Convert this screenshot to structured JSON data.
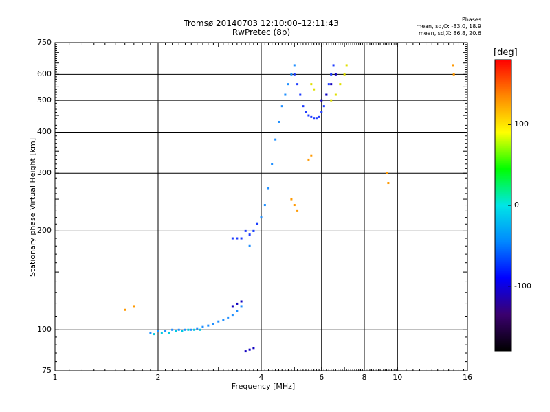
{
  "header": {
    "title_line1": "Tromsø 20140703 12:10:00–12:11:43",
    "title_line2": "RwPretec (8p)"
  },
  "stats": {
    "heading": "Phases",
    "line1": "mean, sd,O: -83.0, 18.9",
    "line2": "mean, sd,X:  86.8, 20.6"
  },
  "colorbar": {
    "label": "[deg]",
    "ticks": [
      {
        "label": "100",
        "value": 100
      },
      {
        "label": "0",
        "value": 0
      },
      {
        "label": "-100",
        "value": -100
      }
    ],
    "range": [
      -180,
      180
    ],
    "palette": [
      "#000000",
      "#3b006f",
      "#0000ff",
      "#0088ff",
      "#00e6e6",
      "#00ff00",
      "#ffff00",
      "#ff8800",
      "#ff0000"
    ]
  },
  "chart_data": {
    "type": "scatter",
    "xlabel": "Frequency [MHz]",
    "ylabel": "Stationary phase Virtual Height [km]",
    "xscale": "log",
    "yscale": "log",
    "xlim": [
      1,
      16
    ],
    "ylim": [
      75,
      750
    ],
    "grid": true,
    "xticks": [
      {
        "label": "1",
        "value": 1
      },
      {
        "label": "2",
        "value": 2
      },
      {
        "label": "4",
        "value": 4
      },
      {
        "label": "6",
        "value": 6
      },
      {
        "label": "8",
        "value": 8
      },
      {
        "label": "10",
        "value": 10
      },
      {
        "label": "16",
        "value": 16
      }
    ],
    "yticks": [
      {
        "label": "75",
        "value": 75
      },
      {
        "label": "100",
        "value": 100
      },
      {
        "label": "200",
        "value": 200
      },
      {
        "label": "300",
        "value": 300
      },
      {
        "label": "400",
        "value": 400
      },
      {
        "label": "500",
        "value": 500
      },
      {
        "label": "600",
        "value": 600
      },
      {
        "label": "750",
        "value": 750
      }
    ],
    "series": [
      {
        "color": "#1f8fff",
        "points": [
          [
            1.9,
            98
          ],
          [
            2.0,
            99
          ],
          [
            2.1,
            99
          ],
          [
            2.2,
            100
          ],
          [
            2.3,
            100
          ],
          [
            2.4,
            100
          ],
          [
            2.5,
            100
          ],
          [
            2.6,
            101
          ],
          [
            2.7,
            102
          ],
          [
            2.8,
            103
          ],
          [
            2.9,
            104
          ],
          [
            3.0,
            106
          ],
          [
            3.1,
            107
          ],
          [
            3.2,
            109
          ],
          [
            3.3,
            111
          ],
          [
            3.4,
            114
          ],
          [
            3.5,
            118
          ],
          [
            3.7,
            180
          ],
          [
            3.8,
            200
          ],
          [
            3.9,
            210
          ],
          [
            4.0,
            220
          ],
          [
            4.1,
            240
          ],
          [
            4.2,
            270
          ],
          [
            4.3,
            320
          ],
          [
            4.4,
            380
          ],
          [
            4.5,
            430
          ],
          [
            4.6,
            480
          ],
          [
            4.7,
            520
          ],
          [
            4.8,
            560
          ],
          [
            4.9,
            600
          ],
          [
            5.0,
            640
          ]
        ]
      },
      {
        "color": "#00c8e0",
        "points": [
          [
            1.95,
            97
          ],
          [
            2.05,
            98
          ],
          [
            2.15,
            98
          ],
          [
            2.25,
            99
          ],
          [
            2.35,
            99
          ],
          [
            2.45,
            100
          ],
          [
            2.55,
            100
          ],
          [
            2.65,
            100
          ]
        ]
      },
      {
        "color": "#1e3cff",
        "points": [
          [
            3.3,
            190
          ],
          [
            3.4,
            190
          ],
          [
            3.5,
            190
          ],
          [
            3.6,
            200
          ],
          [
            3.7,
            195
          ],
          [
            3.8,
            200
          ],
          [
            3.9,
            210
          ],
          [
            5.0,
            600
          ],
          [
            5.1,
            560
          ],
          [
            5.2,
            520
          ],
          [
            5.3,
            480
          ],
          [
            5.4,
            460
          ],
          [
            5.5,
            450
          ],
          [
            5.6,
            445
          ],
          [
            5.7,
            440
          ],
          [
            5.8,
            440
          ],
          [
            5.9,
            445
          ],
          [
            6.0,
            460
          ],
          [
            6.1,
            480
          ],
          [
            6.2,
            520
          ],
          [
            6.3,
            560
          ],
          [
            6.4,
            600
          ],
          [
            6.5,
            640
          ]
        ]
      },
      {
        "color": "#1000c0",
        "points": [
          [
            3.3,
            118
          ],
          [
            3.4,
            120
          ],
          [
            3.5,
            122
          ],
          [
            3.6,
            86
          ],
          [
            3.7,
            87
          ],
          [
            3.8,
            88
          ],
          [
            6.0,
            500
          ],
          [
            6.2,
            520
          ],
          [
            6.4,
            560
          ],
          [
            6.6,
            600
          ]
        ]
      },
      {
        "color": "#e0e000",
        "points": [
          [
            5.6,
            560
          ],
          [
            5.7,
            540
          ],
          [
            6.4,
            500
          ],
          [
            6.6,
            520
          ],
          [
            6.8,
            560
          ],
          [
            7.0,
            600
          ],
          [
            7.1,
            640
          ]
        ]
      },
      {
        "color": "#ff9900",
        "points": [
          [
            1.6,
            115
          ],
          [
            1.7,
            118
          ],
          [
            4.9,
            250
          ],
          [
            5.0,
            240
          ],
          [
            5.1,
            230
          ],
          [
            5.5,
            330
          ],
          [
            5.6,
            340
          ],
          [
            9.3,
            300
          ],
          [
            9.4,
            280
          ],
          [
            14.5,
            640
          ],
          [
            14.6,
            600
          ]
        ]
      }
    ]
  }
}
